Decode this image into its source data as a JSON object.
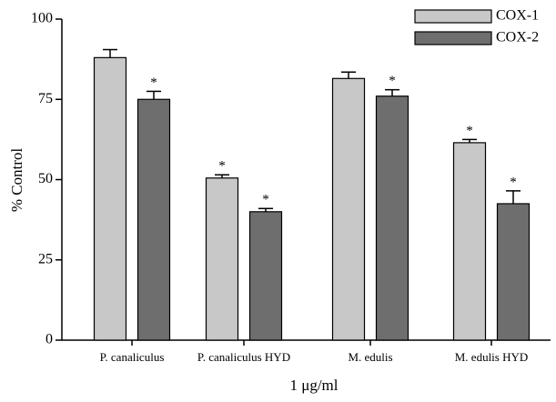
{
  "chart_data": {
    "type": "bar",
    "xlabel": "1 μg/ml",
    "ylabel": "% Control",
    "categories": [
      "P. canaliculus",
      "P. canaliculus HYD",
      "M. edulis",
      "M. edulis HYD"
    ],
    "series": [
      {
        "name": "COX-1",
        "color": "#c8c8c8",
        "values": [
          88,
          50.5,
          81.5,
          61.5
        ],
        "errors": [
          2.5,
          1,
          2,
          1
        ],
        "annotations": [
          null,
          "*",
          null,
          "*"
        ]
      },
      {
        "name": "COX-2",
        "color": "#6e6e6e",
        "values": [
          75,
          40,
          76,
          42.5
        ],
        "errors": [
          2.5,
          1,
          2,
          4
        ],
        "annotations": [
          "*",
          "*",
          "*",
          "*"
        ]
      }
    ],
    "ylim": [
      0,
      100
    ],
    "yticks": [
      0,
      25,
      50,
      75,
      100
    ],
    "legend": "upper right"
  }
}
